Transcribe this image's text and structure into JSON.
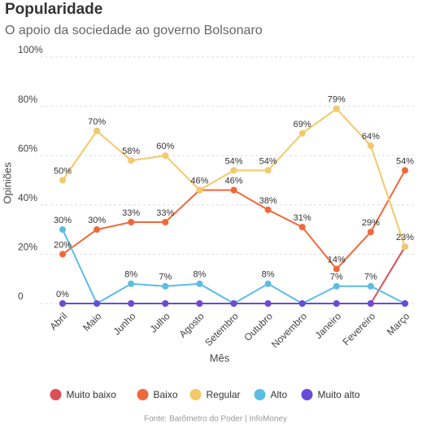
{
  "chart_data": {
    "type": "line",
    "title": "Popularidade",
    "subtitle": "O apoio da sociedade ao governo Bolsonaro",
    "x_label": "Mês",
    "y_label": "Opiniões",
    "source": "Fonte: Barômetro do Poder | InfoMoney",
    "categories": [
      "Abril",
      "Maio",
      "Junho",
      "Julho",
      "Agosto",
      "Setembro",
      "Outubro",
      "Novembro",
      "Janeiro",
      "Fevereiro",
      "Março"
    ],
    "ylim": [
      0,
      100
    ],
    "yticks": [
      {
        "value": 0,
        "label": "0"
      },
      {
        "value": 20,
        "label": "20%"
      },
      {
        "value": 40,
        "label": "40%"
      },
      {
        "value": 60,
        "label": "60%"
      },
      {
        "value": 80,
        "label": "80%"
      },
      {
        "value": 100,
        "label": "100%"
      }
    ],
    "grid": true,
    "series": [
      {
        "name": "Muito baixo",
        "color": "#dc4f55",
        "values": [
          0,
          0,
          0,
          0,
          0,
          0,
          0,
          0,
          0,
          0,
          23
        ],
        "value_labels": [
          "0%",
          null,
          null,
          null,
          null,
          null,
          null,
          null,
          null,
          null,
          null
        ]
      },
      {
        "name": "Baixo",
        "color": "#f0683a",
        "values": [
          20,
          30,
          33,
          33,
          46,
          46,
          38,
          31,
          14,
          29,
          54
        ],
        "value_labels": [
          "20%",
          "30%",
          "33%",
          "33%",
          null,
          "46%",
          "38%",
          "31%",
          "14%",
          "29%",
          "54%"
        ]
      },
      {
        "name": "Regular",
        "color": "#f3c96a",
        "values": [
          50,
          70,
          58,
          60,
          46,
          54,
          54,
          69,
          79,
          64,
          23
        ],
        "value_labels": [
          "50%",
          "70%",
          "58%",
          "60%",
          "46%",
          "54%",
          "54%",
          "69%",
          "79%",
          "64%",
          "23%"
        ]
      },
      {
        "name": "Alto",
        "color": "#5cbde4",
        "values": [
          30,
          0,
          8,
          7,
          8,
          0,
          8,
          0,
          7,
          7,
          0
        ],
        "value_labels": [
          "30%",
          null,
          "8%",
          "7%",
          "8%",
          null,
          "8%",
          null,
          "7%",
          "7%",
          null
        ]
      },
      {
        "name": "Muito alto",
        "color": "#6a4bd8",
        "values": [
          0,
          0,
          0,
          0,
          0,
          0,
          0,
          0,
          0,
          0,
          0
        ],
        "value_labels": [
          null,
          null,
          null,
          null,
          null,
          null,
          null,
          null,
          null,
          null,
          null
        ]
      }
    ]
  }
}
